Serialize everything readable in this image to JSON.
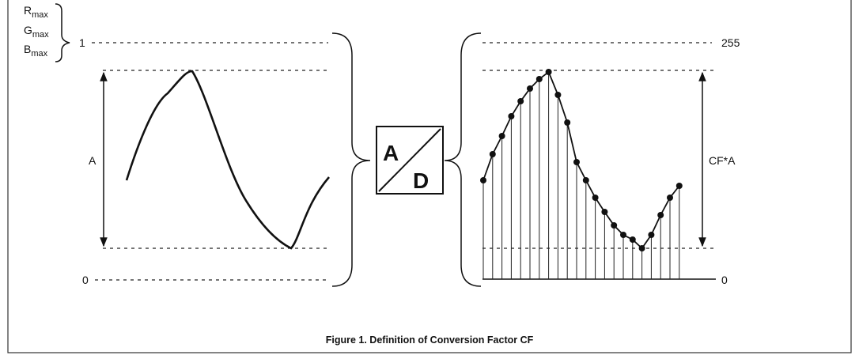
{
  "left": {
    "r": "R",
    "r_sub": "max",
    "g": "G",
    "g_sub": "max",
    "b": "B",
    "b_sub": "max",
    "one": "1",
    "zero": "0",
    "amplitude": "A"
  },
  "converter": {
    "a": "A",
    "d": "D"
  },
  "right": {
    "max": "255",
    "zero": "0",
    "amplitude": "CF*A"
  },
  "caption": "Figure 1.  Definition of Conversion Factor CF"
}
